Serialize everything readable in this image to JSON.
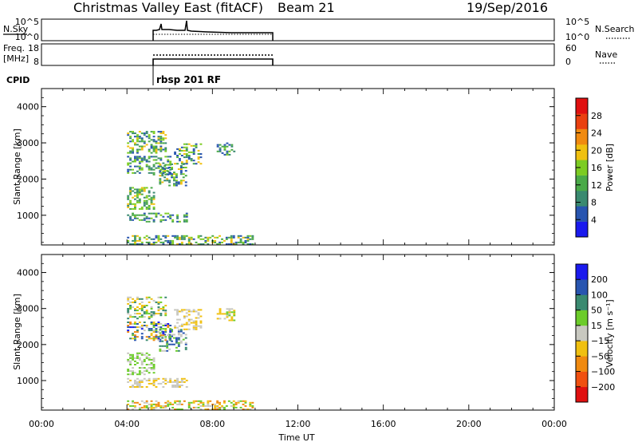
{
  "header": {
    "title": "Christmas Valley East (fitACF)",
    "beam": "Beam 21",
    "date": "19/Sep/2016"
  },
  "top_panels": {
    "nsky": {
      "left_label": "N.Sky",
      "left_ticks": [
        "10^5",
        "10^0"
      ],
      "right_ticks": [
        "10^5",
        "10^0"
      ],
      "right_label": "N.Search"
    },
    "freq": {
      "left_label_1": "Freq.",
      "left_label_2": "[MHz]",
      "left_ticks": [
        "18",
        "8"
      ],
      "right_ticks": [
        "60",
        "0"
      ],
      "right_label": "Nave"
    },
    "cpid": {
      "label": "CPID",
      "value": "rbsp 201 RF"
    }
  },
  "colors": {
    "power": [
      "#1a1aee",
      "#2855b0",
      "#3a8a70",
      "#4aaa48",
      "#7ccc22",
      "#f0c010",
      "#f08a10",
      "#ea4010",
      "#e01010"
    ],
    "velocity": [
      "#e01010",
      "#f05010",
      "#f08a10",
      "#f0c010",
      "#c8c8c0",
      "#6ccc2a",
      "#3a8a70",
      "#2855b0",
      "#1a1aee"
    ]
  },
  "colorbars": {
    "power": {
      "ticks": [
        "28",
        "24",
        "20",
        "16",
        "12",
        "8",
        "4"
      ],
      "label": "Power [dB]"
    },
    "velocity": {
      "ticks": [
        "200",
        "100",
        "50",
        "15",
        "−15",
        "−50",
        "−100",
        "−200"
      ],
      "label": "Velocity [m s⁻¹]"
    }
  },
  "chart_data": [
    {
      "type": "heatmap",
      "quantity": "Power",
      "xlabel": "Time UT",
      "ylabel": "Slant Range [km]",
      "xlim_hours": [
        0,
        24
      ],
      "ylim_km": [
        180,
        4500
      ],
      "x_tick_labels": [
        "00:00",
        "04:00",
        "08:00",
        "12:00",
        "16:00",
        "20:00",
        "00:00"
      ],
      "y_tick_labels": [
        "1000",
        "2000",
        "3000",
        "4000"
      ],
      "clim_db": [
        0,
        32
      ],
      "regions": [
        {
          "t0": 4.0,
          "t1": 5.3,
          "r0": 1150,
          "r1": 1750,
          "lvl": [
            2,
            5
          ]
        },
        {
          "t0": 4.0,
          "t1": 5.8,
          "r0": 2700,
          "r1": 3300,
          "lvl": [
            1,
            5
          ]
        },
        {
          "t0": 5.5,
          "t1": 6.8,
          "r0": 1800,
          "r1": 2400,
          "lvl": [
            1,
            5
          ]
        },
        {
          "t0": 6.2,
          "t1": 7.5,
          "r0": 2400,
          "r1": 2950,
          "lvl": [
            1,
            5
          ]
        },
        {
          "t0": 8.2,
          "t1": 9.0,
          "r0": 2650,
          "r1": 3000,
          "lvl": [
            1,
            4
          ]
        },
        {
          "t0": 4.0,
          "t1": 9.9,
          "r0": 180,
          "r1": 450,
          "lvl": [
            1,
            5
          ]
        },
        {
          "t0": 4.0,
          "t1": 6.8,
          "r0": 800,
          "r1": 1050,
          "lvl": [
            1,
            4
          ]
        },
        {
          "t0": 4.0,
          "t1": 6.0,
          "r0": 2100,
          "r1": 2600,
          "lvl": [
            1,
            4
          ]
        }
      ]
    },
    {
      "type": "heatmap",
      "quantity": "Velocity",
      "xlabel": "Time UT",
      "ylabel": "Slant Range [km]",
      "xlim_hours": [
        0,
        24
      ],
      "ylim_km": [
        180,
        4500
      ],
      "x_tick_labels": [
        "00:00",
        "04:00",
        "08:00",
        "12:00",
        "16:00",
        "20:00",
        "00:00"
      ],
      "y_tick_labels": [
        "1000",
        "2000",
        "3000",
        "4000"
      ],
      "clim_ms": [
        -250,
        250
      ],
      "regions": [
        {
          "t0": 4.0,
          "t1": 5.3,
          "r0": 1150,
          "r1": 1750,
          "lvl": [
            4,
            5
          ]
        },
        {
          "t0": 4.0,
          "t1": 5.8,
          "r0": 2700,
          "r1": 3300,
          "lvl": [
            3,
            6
          ]
        },
        {
          "t0": 5.5,
          "t1": 6.8,
          "r0": 1800,
          "r1": 2400,
          "lvl": [
            4,
            7
          ]
        },
        {
          "t0": 6.2,
          "t1": 7.5,
          "r0": 2400,
          "r1": 2950,
          "lvl": [
            3,
            4
          ]
        },
        {
          "t0": 8.2,
          "t1": 9.0,
          "r0": 2650,
          "r1": 3000,
          "lvl": [
            3,
            5
          ]
        },
        {
          "t0": 4.0,
          "t1": 9.9,
          "r0": 180,
          "r1": 450,
          "lvl": [
            2,
            5
          ]
        },
        {
          "t0": 4.0,
          "t1": 6.8,
          "r0": 800,
          "r1": 1050,
          "lvl": [
            3,
            4
          ]
        },
        {
          "t0": 4.0,
          "t1": 6.0,
          "r0": 2100,
          "r1": 2600,
          "lvl": [
            2,
            8
          ]
        }
      ]
    }
  ]
}
